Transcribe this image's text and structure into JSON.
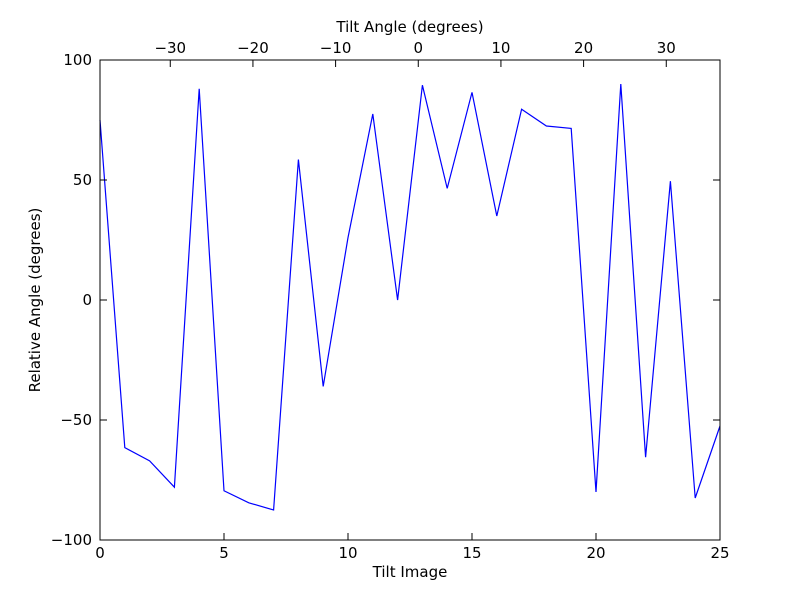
{
  "chart_data": {
    "type": "line",
    "title": "",
    "xlabel": "Tilt Image",
    "ylabel": "Relative Angle (degrees)",
    "x2label": "Tilt Angle (degrees)",
    "xlim": [
      0,
      25
    ],
    "ylim": [
      -100,
      100
    ],
    "x2lim": [
      -38.5,
      36.5
    ],
    "grid": false,
    "xticks": [
      0,
      5,
      10,
      15,
      20,
      25
    ],
    "xtick_labels": [
      "0",
      "5",
      "10",
      "15",
      "20",
      "25"
    ],
    "yticks": [
      -100,
      -50,
      0,
      50,
      100
    ],
    "ytick_labels": [
      "−100",
      "−50",
      "0",
      "50",
      "100"
    ],
    "x2ticks": [
      -30,
      -20,
      -10,
      0,
      10,
      20,
      30
    ],
    "x2tick_labels": [
      "−30",
      "−20",
      "−10",
      "0",
      "10",
      "20",
      "30"
    ],
    "series": [
      {
        "color": "#0000ff",
        "x": [
          0,
          1,
          2,
          3,
          4,
          5,
          6,
          7,
          8,
          9,
          10,
          11,
          12,
          13,
          14,
          15,
          16,
          17,
          18,
          19,
          20,
          21,
          22,
          23,
          24,
          25
        ],
        "y": [
          75,
          -61.5,
          -67,
          -78,
          88,
          -79.5,
          -84.5,
          -87.5,
          58.5,
          -36,
          26,
          77.5,
          0,
          89.5,
          46.5,
          86.5,
          35,
          79.5,
          72.5,
          71.5,
          -80,
          90,
          -65.5,
          49.5,
          -82.5,
          -52.5
        ]
      }
    ]
  }
}
